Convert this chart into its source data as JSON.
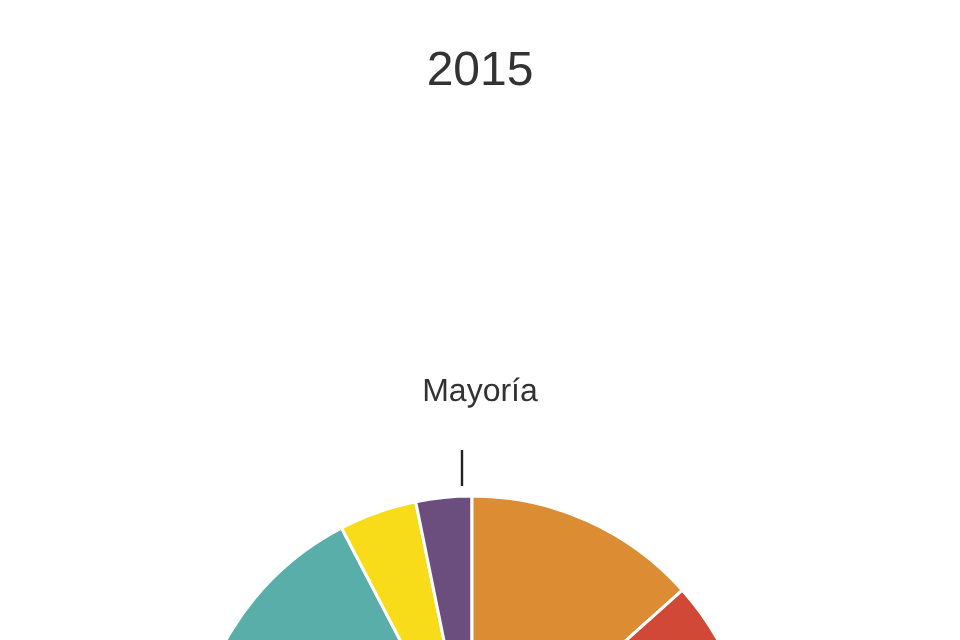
{
  "chart_data": {
    "type": "pie",
    "title": "2015",
    "annotations": [
      "Mayoría"
    ],
    "categories": [
      null,
      null,
      null,
      null,
      null
    ],
    "values": [
      34.7,
      8.9,
      6.4,
      26.8,
      23.2
    ],
    "colors": [
      "#5aaea9",
      "#f8dc1a",
      "#6c4e7e",
      "#dc8d34",
      "#d14836"
    ]
  }
}
